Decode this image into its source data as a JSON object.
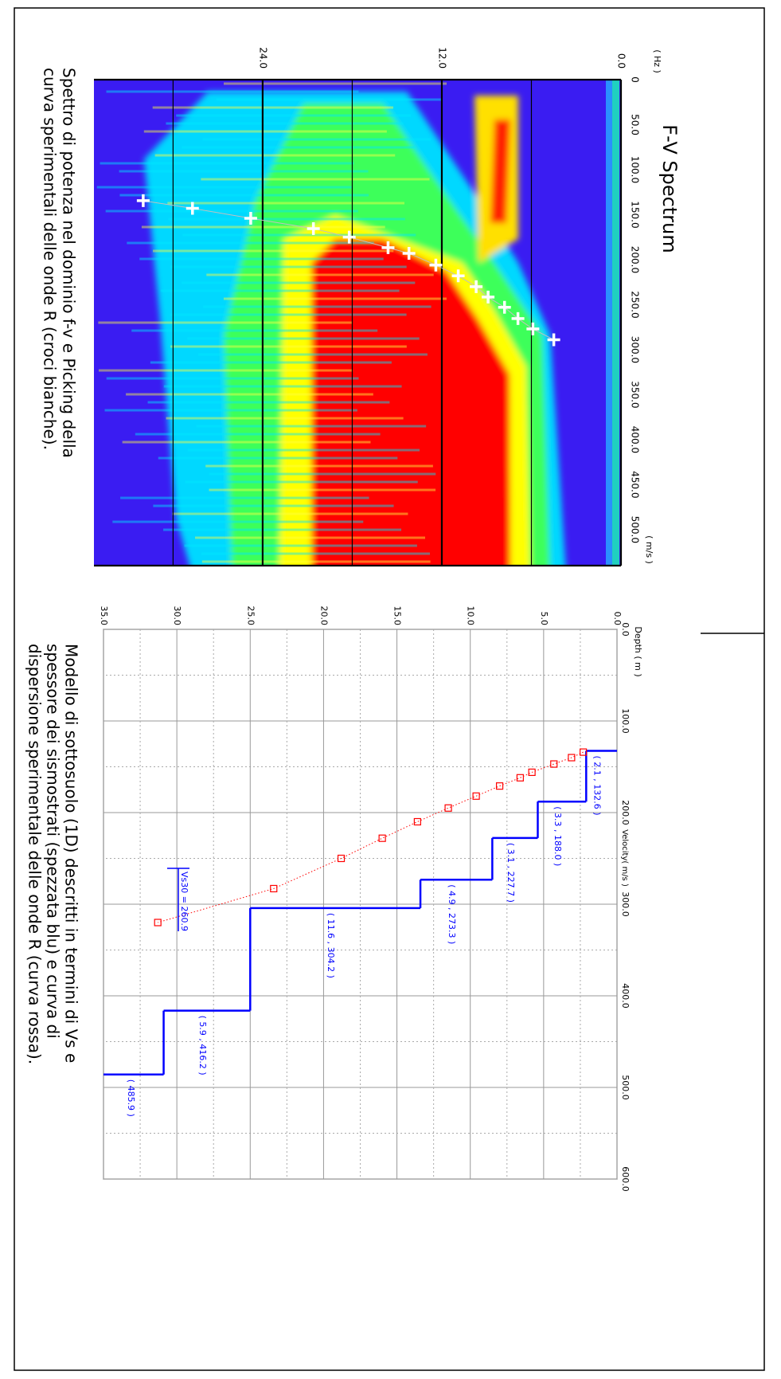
{
  "chart_data": [
    {
      "type": "spectrum",
      "title": "F-V Spectrum",
      "x_label": "( m/s )",
      "y_label": "( Hz )",
      "xlim": [
        0,
        540
      ],
      "xticks": [
        {
          "value": 0,
          "label": "0"
        },
        {
          "value": 50,
          "label": "50.0"
        },
        {
          "value": 100,
          "label": "100.0"
        },
        {
          "value": 150,
          "label": "150.0"
        },
        {
          "value": 200,
          "label": "200.0"
        },
        {
          "value": 250,
          "label": "250.0"
        },
        {
          "value": 300,
          "label": "300.0"
        },
        {
          "value": 350,
          "label": "350.0"
        },
        {
          "value": 400,
          "label": "400.0"
        },
        {
          "value": 450,
          "label": "450.0"
        },
        {
          "value": 500,
          "label": "500.0"
        }
      ],
      "ylim": [
        0,
        35.3
      ],
      "y_reversed": true,
      "yticks": [
        {
          "value": 0,
          "label": "0.0"
        },
        {
          "value": 12,
          "label": "12.0"
        },
        {
          "value": 24,
          "label": "24.0"
        }
      ],
      "y_grid": [
        6,
        18,
        30
      ],
      "picks": {
        "color": "#ffffff",
        "x": [
          134.5,
          143,
          154,
          165.5,
          175,
          186.7,
          193,
          206,
          218,
          230,
          241.6,
          253,
          265.5,
          277,
          289
        ],
        "y": [
          32.0,
          28.7,
          24.8,
          20.6,
          18.2,
          15.6,
          14.2,
          12.4,
          10.9,
          9.7,
          8.9,
          7.8,
          6.9,
          5.9,
          4.5
        ]
      },
      "caption": [
        "Spettro di potenza nel dominio f-v e Picking della",
        "curva sperimentali delle onde R (croci bianche)."
      ]
    },
    {
      "type": "profile",
      "x_label": "Velocity( m/s )",
      "y_label": "Depth ( m )",
      "xlim": [
        0,
        600
      ],
      "xticks": [
        {
          "value": 0,
          "label": "0.0"
        },
        {
          "value": 100,
          "label": "100.0"
        },
        {
          "value": 200,
          "label": "200.0"
        },
        {
          "value": 300,
          "label": "300.0"
        },
        {
          "value": 400,
          "label": "400.0"
        },
        {
          "value": 500,
          "label": "500.0"
        },
        {
          "value": 600,
          "label": "600.0"
        }
      ],
      "ylim": [
        0,
        35
      ],
      "y_reversed": true,
      "yticks": [
        {
          "value": 0,
          "label": "0.0"
        },
        {
          "value": 5,
          "label": "5.0"
        },
        {
          "value": 10,
          "label": "10.0"
        },
        {
          "value": 15,
          "label": "15.0"
        },
        {
          "value": 20,
          "label": "20.0"
        },
        {
          "value": 25,
          "label": "25.0"
        },
        {
          "value": 30,
          "label": "30.0"
        },
        {
          "value": 35,
          "label": "35.0"
        }
      ],
      "model_color": "#0000ff",
      "layers": [
        {
          "thickness": 2.1,
          "vs": 132.6,
          "label": "( 2.1 , 132.6 )"
        },
        {
          "thickness": 3.3,
          "vs": 188.0,
          "label": "( 3.3 , 188.0 )"
        },
        {
          "thickness": 3.1,
          "vs": 227.7,
          "label": "( 3.1 , 227.7 )"
        },
        {
          "thickness": 4.9,
          "vs": 273.3,
          "label": "( 4.9 , 273.3 )"
        },
        {
          "thickness": 11.6,
          "vs": 304.2,
          "label": "( 11.6 , 304.2 )"
        },
        {
          "thickness": 5.9,
          "vs": 416.2,
          "label": "( 5.9 , 416.2 )"
        }
      ],
      "halfspace": {
        "vs": 485.9,
        "label": "( 485.9 )"
      },
      "dispersion": {
        "color": "#ff0000",
        "x": [
          134,
          140,
          147,
          156,
          162,
          171,
          182,
          195,
          210,
          228,
          250,
          283,
          320
        ],
        "y": [
          2.3,
          3.1,
          4.3,
          5.8,
          6.6,
          8.0,
          9.6,
          11.5,
          13.6,
          16.0,
          18.8,
          23.4,
          31.3
        ]
      },
      "vs30": {
        "value": 260.9,
        "label": "Vs30 = 260.9"
      },
      "caption": [
        "Modello di sottosuolo (1D) descritti in termini di Vs e",
        "spessore dei sismostrati (spezzata blu) e curva di",
        "dispersione sperimentale delle onde R (curva rossa)."
      ]
    }
  ]
}
